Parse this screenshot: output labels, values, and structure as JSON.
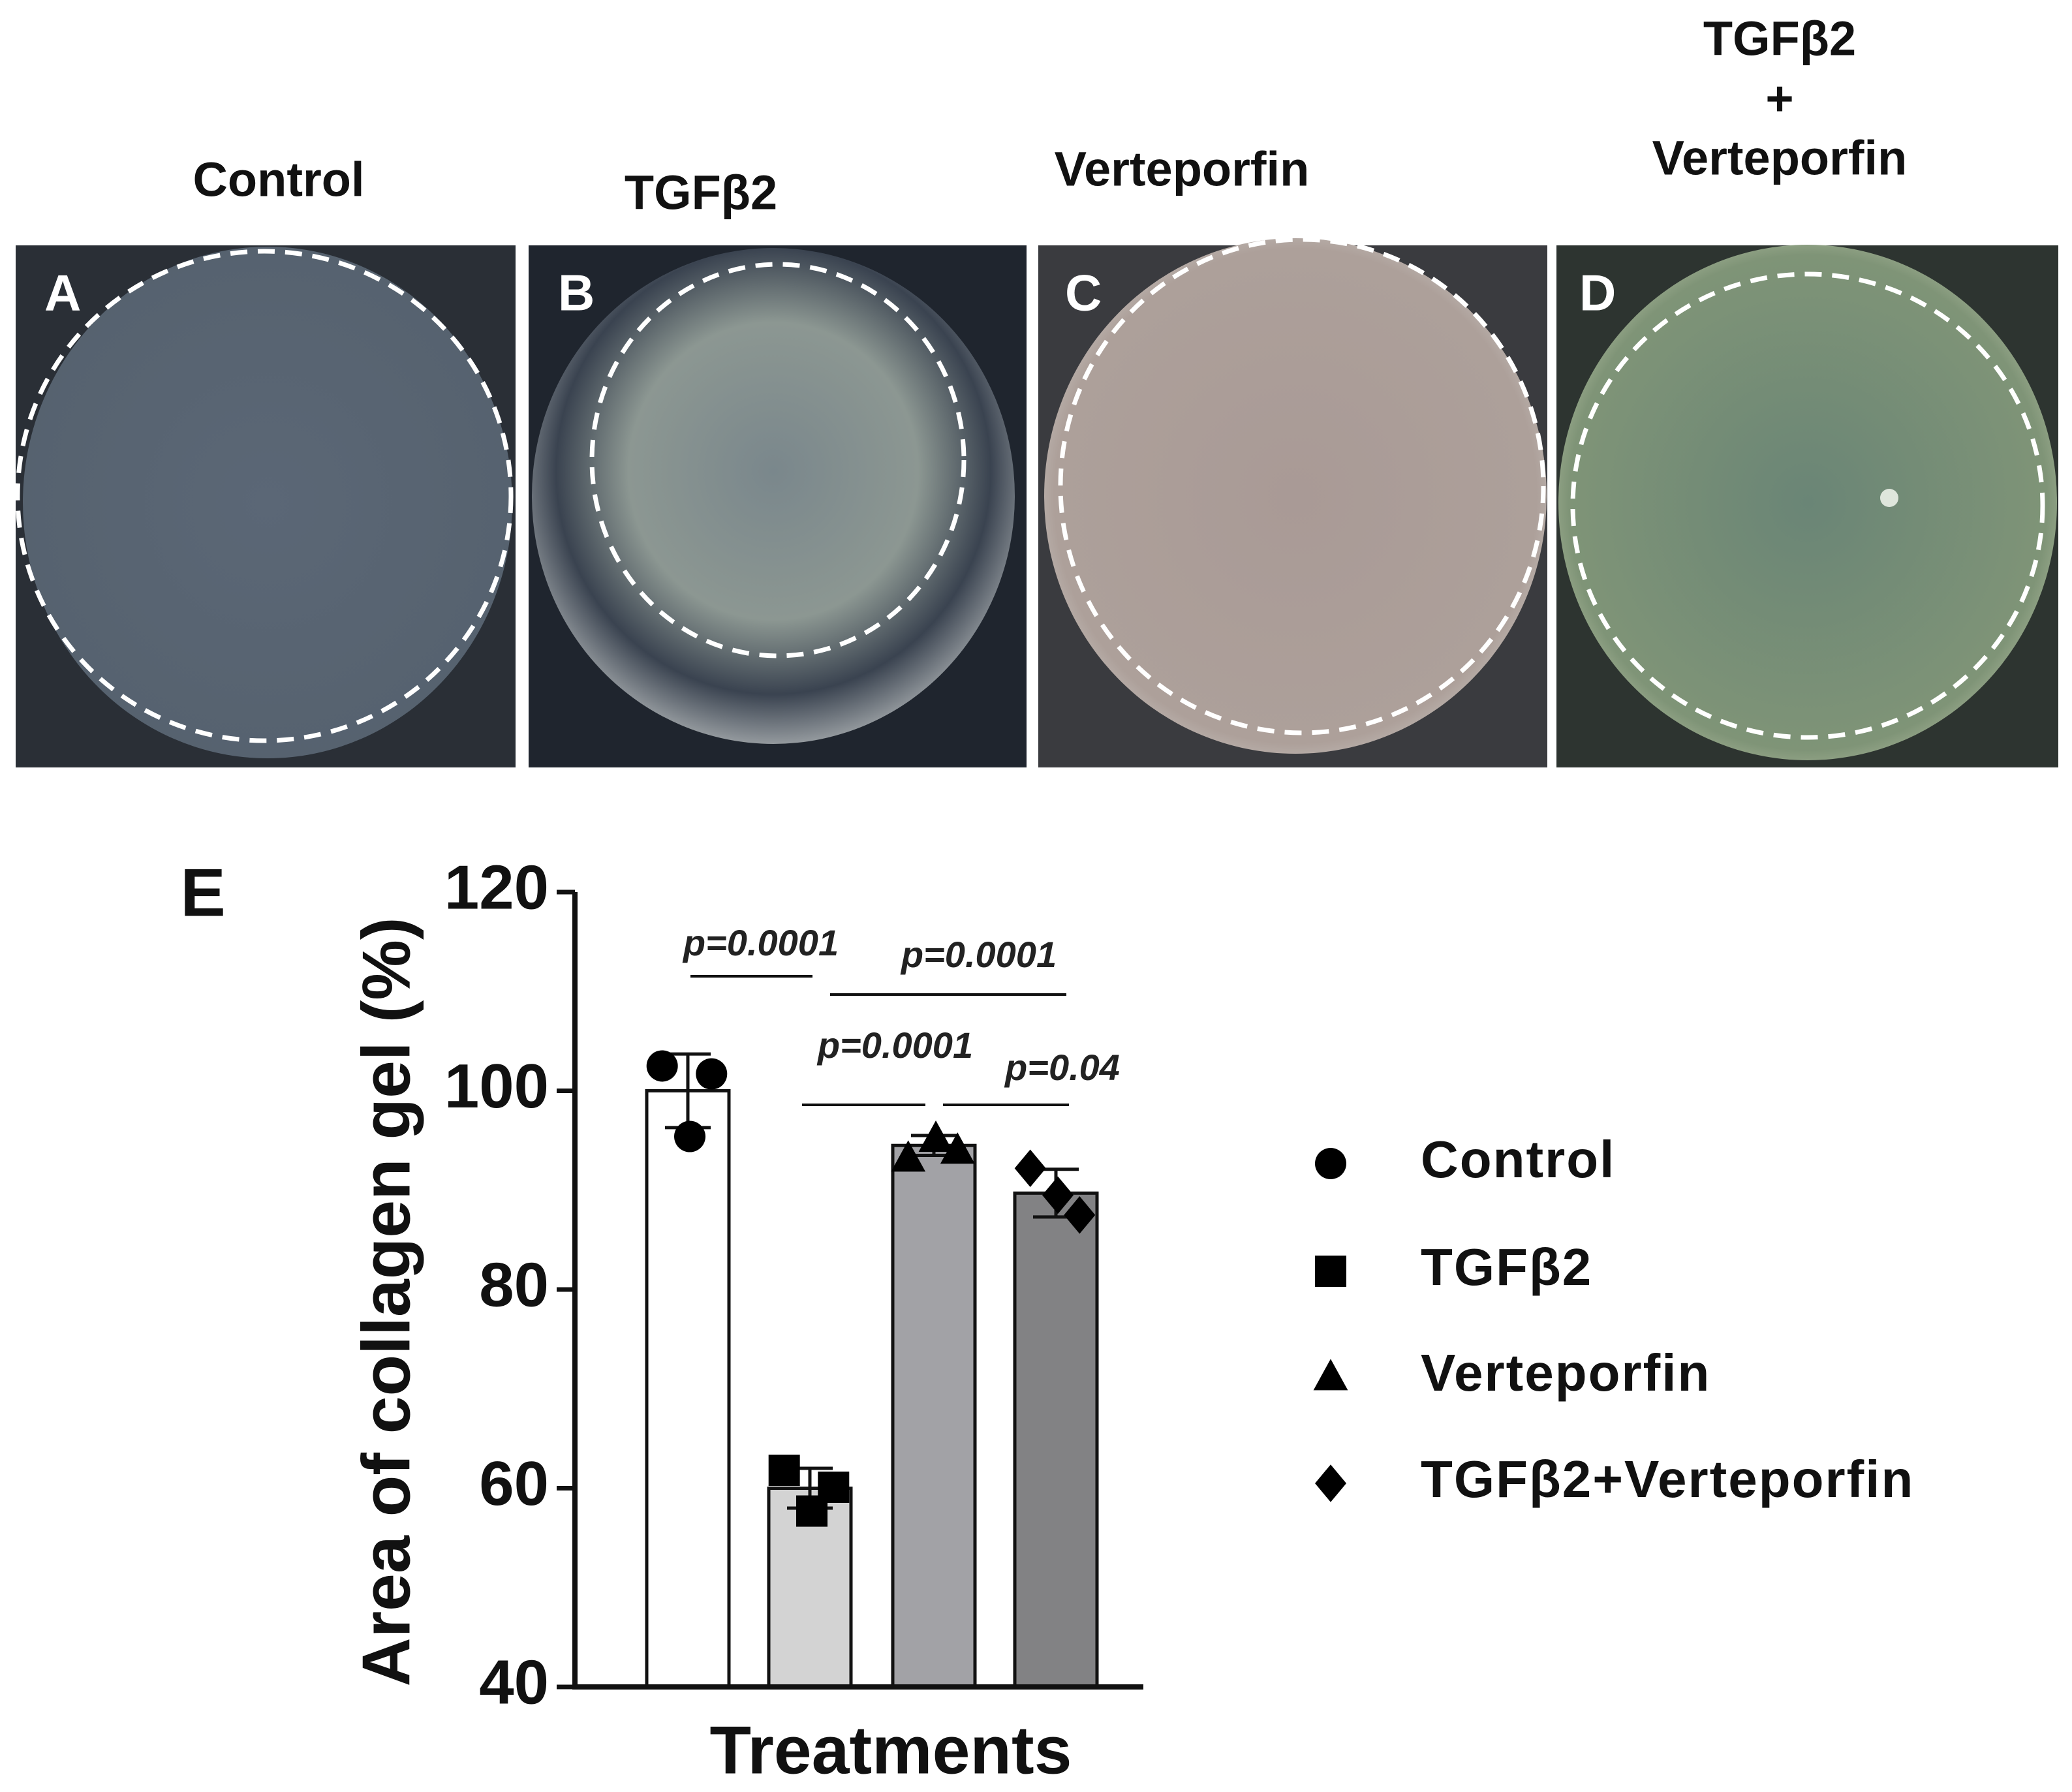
{
  "panels": [
    {
      "letter": "A",
      "title": "Control"
    },
    {
      "letter": "B",
      "title": "TGFβ2"
    },
    {
      "letter": "C",
      "title": "Verteporfin"
    },
    {
      "letter": "D",
      "title": [
        "TGFβ2",
        "+",
        "Verteporfin"
      ]
    }
  ],
  "chart_data": {
    "type": "bar",
    "panel_letter": "E",
    "y_label": "Area of collagen gel (%)",
    "x_label": "Treatments",
    "categories": [
      "Control",
      "TGFβ2",
      "Verteporfin",
      "TGFβ2+Verteporfin"
    ],
    "values": [
      100,
      60,
      94.5,
      89.7
    ],
    "errors": [
      3.7,
      2,
      1,
      2.4
    ],
    "points": [
      [
        102.5,
        95.4,
        101.7
      ],
      [
        61.8,
        57.7,
        60.1
      ],
      [
        93.2,
        95.2,
        94.0
      ],
      [
        92.2,
        89.5,
        87.5
      ]
    ],
    "colors": [
      "#ffffff",
      "#d3d3d3",
      "#a2a2a6",
      "#828284"
    ],
    "markers": [
      "circle",
      "square",
      "triangle",
      "diamond"
    ],
    "ylim": [
      40,
      120
    ],
    "yticks": [
      40,
      60,
      80,
      100,
      120
    ],
    "annotations": [
      "p=0.0001",
      "p=0.0001",
      "p=0.0001",
      "p=0.04"
    ]
  }
}
